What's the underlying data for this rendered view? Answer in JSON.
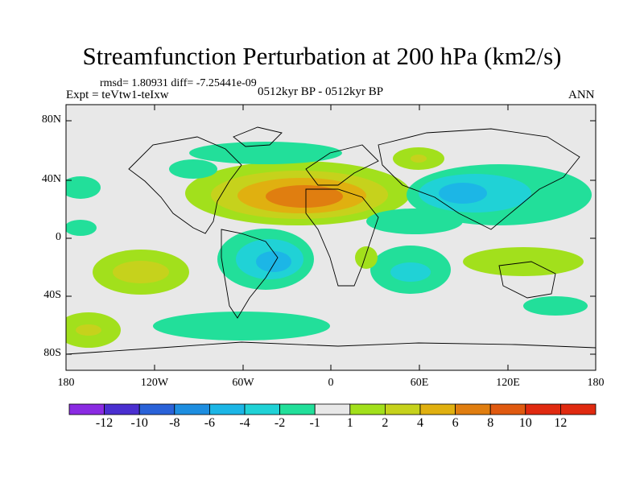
{
  "title": "Streamfunction Perturbation at 200 hPa (km2/s)",
  "stats": "rmsd= 1.80931 diff= -7.25441e-09",
  "expt": "Expt = teVtw1-teIxw",
  "period": "0512kyr BP - 0512kyr BP",
  "season": "ANN",
  "y_ticks": [
    "80N",
    "40N",
    "0",
    "40S",
    "80S"
  ],
  "x_ticks": [
    "180",
    "120W",
    "60W",
    "0",
    "60E",
    "120E",
    "180"
  ],
  "colorbar": {
    "labels": [
      "-12",
      "-10",
      "-8",
      "-6",
      "-4",
      "-2",
      "-1",
      "1",
      "2",
      "4",
      "6",
      "8",
      "10",
      "12"
    ],
    "colors": [
      "#8a2be2",
      "#4a2fd0",
      "#2a62d8",
      "#1e8ee0",
      "#1cb6e6",
      "#20d2d6",
      "#22df9a",
      "#e8e8e8",
      "#a2e01c",
      "#c6d21c",
      "#e0b010",
      "#e07e10",
      "#e05a10",
      "#e02a10"
    ]
  },
  "colors": {
    "ocean": "#e8e8e8",
    "coast": "#000000"
  }
}
